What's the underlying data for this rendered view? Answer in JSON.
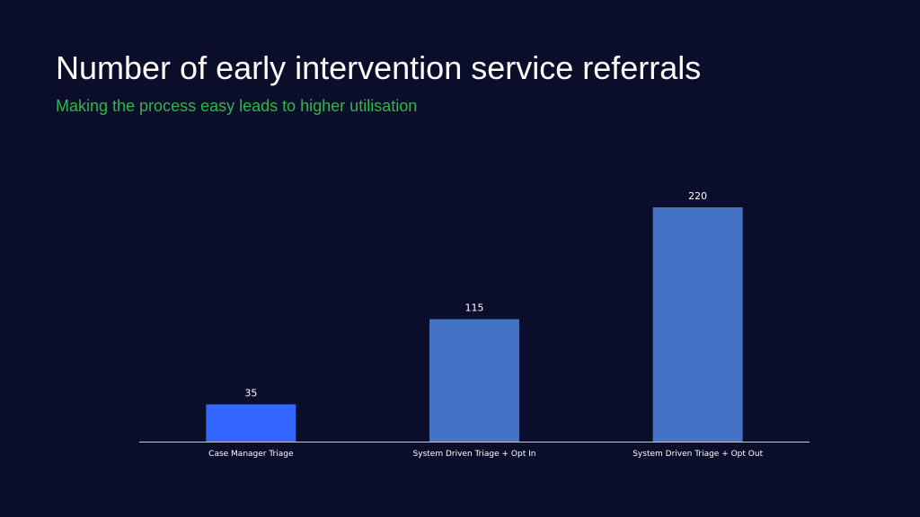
{
  "slide": {
    "title": "Number of early intervention service referrals",
    "subtitle": "Making the process easy leads to higher utilisation",
    "title_color": "#ffffff",
    "subtitle_color": "#2fb64a",
    "background": "#0b0e2a"
  },
  "chart_data": {
    "type": "bar",
    "categories": [
      "Case Manager Triage",
      "System Driven Triage + Opt In",
      "System Driven Triage + Opt Out"
    ],
    "values": [
      35,
      115,
      220
    ],
    "bar_colors": [
      "#3366ff",
      "#4472c4",
      "#4472c4"
    ],
    "data_labels": true,
    "ylim": [
      0,
      220
    ],
    "grid": false,
    "legend": "none"
  }
}
